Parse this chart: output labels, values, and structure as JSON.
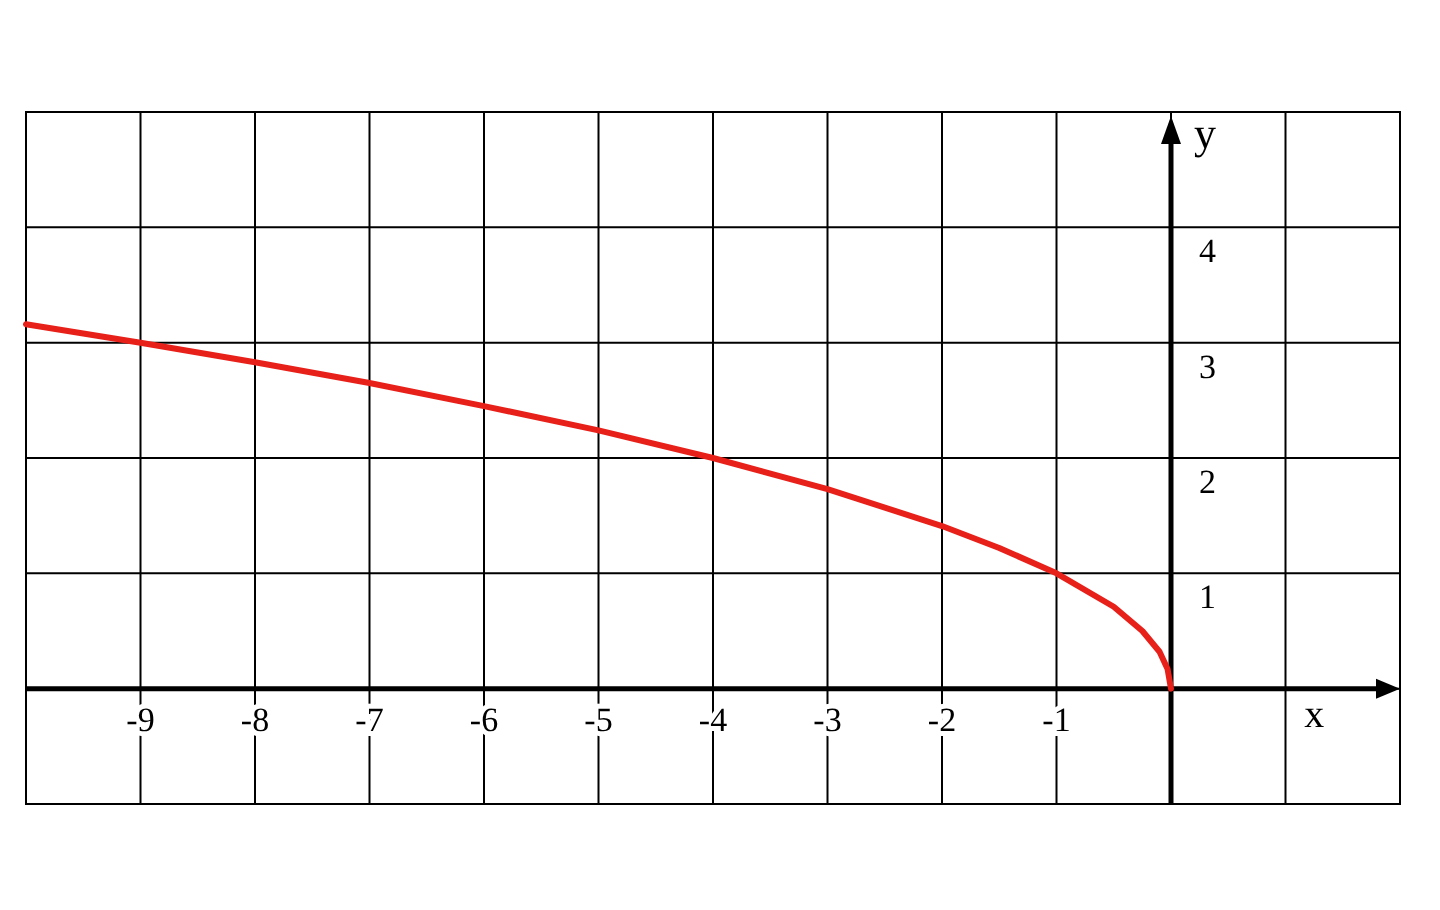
{
  "chart_data": {
    "type": "line",
    "xlabel": "x",
    "ylabel": "y",
    "x": [
      -10,
      -9,
      -8,
      -7,
      -6,
      -5,
      -4,
      -3,
      -2,
      -1.5,
      -1,
      -0.5,
      -0.25,
      -0.1,
      -0.03,
      0
    ],
    "series": [
      {
        "color": "#e8201a",
        "values": [
          3.16,
          3,
          2.83,
          2.65,
          2.45,
          2.24,
          2,
          1.73,
          1.41,
          1.22,
          1,
          0.71,
          0.5,
          0.32,
          0.17,
          0
        ]
      }
    ],
    "xlim": [
      -10,
      2
    ],
    "ylim": [
      -1,
      5
    ],
    "xticks": [
      {
        "value": -10,
        "label": null
      },
      -9,
      -8,
      -7,
      -6,
      -5,
      -4,
      -3,
      -2,
      -1,
      {
        "value": 0,
        "label": null
      },
      {
        "value": 1,
        "label": null
      },
      {
        "value": 2,
        "label": null
      }
    ],
    "yticks": [
      {
        "value": -1,
        "label": null
      },
      {
        "value": 0,
        "label": null
      },
      1,
      2,
      3,
      4,
      {
        "value": 5,
        "label": null
      }
    ],
    "grid": true,
    "marker": "none",
    "line_style": "solid"
  }
}
